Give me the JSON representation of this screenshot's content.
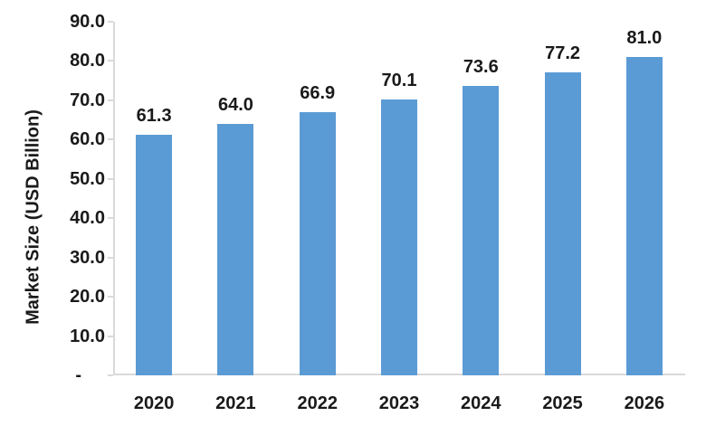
{
  "chart_data": {
    "type": "bar",
    "categories": [
      "2020",
      "2021",
      "2022",
      "2023",
      "2024",
      "2025",
      "2026"
    ],
    "values": [
      61.3,
      64.0,
      66.9,
      70.1,
      73.6,
      77.2,
      81.0
    ],
    "value_labels": [
      "61.3",
      "64.0",
      "66.9",
      "70.1",
      "73.6",
      "77.2",
      "81.0"
    ],
    "title": "",
    "xlabel": "",
    "ylabel": "Market Size (USD Billion)",
    "ylim": [
      0,
      90
    ],
    "ytick_step": 10,
    "ytick_labels_bottom_up": [
      "-",
      "10.0",
      "20.0",
      "30.0",
      "40.0",
      "50.0",
      "60.0",
      "70.0",
      "80.0",
      "90.0"
    ],
    "grid": false,
    "legend": "none",
    "colors": {
      "bar": "#5B9BD5",
      "axis": "#D9D9D9",
      "text": "#1a1a1a",
      "background": "#ffffff"
    }
  }
}
